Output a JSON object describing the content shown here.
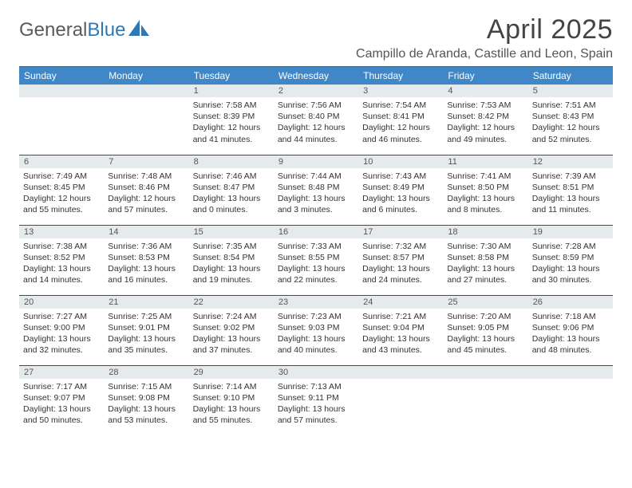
{
  "brand": {
    "name_part1": "General",
    "name_part2": "Blue"
  },
  "title": "April 2025",
  "location": "Campillo de Aranda, Castille and Leon, Spain",
  "colors": {
    "header_bg": "#3f87c6",
    "header_text": "#ffffff",
    "daybar_bg": "#e5eaed",
    "rule": "#555555",
    "brand_blue": "#2e79b5",
    "text": "#333333"
  },
  "weekdays": [
    "Sunday",
    "Monday",
    "Tuesday",
    "Wednesday",
    "Thursday",
    "Friday",
    "Saturday"
  ],
  "weeks": [
    [
      {
        "blank": true
      },
      {
        "blank": true
      },
      {
        "day": "1",
        "sunrise": "Sunrise: 7:58 AM",
        "sunset": "Sunset: 8:39 PM",
        "daylight1": "Daylight: 12 hours",
        "daylight2": "and 41 minutes."
      },
      {
        "day": "2",
        "sunrise": "Sunrise: 7:56 AM",
        "sunset": "Sunset: 8:40 PM",
        "daylight1": "Daylight: 12 hours",
        "daylight2": "and 44 minutes."
      },
      {
        "day": "3",
        "sunrise": "Sunrise: 7:54 AM",
        "sunset": "Sunset: 8:41 PM",
        "daylight1": "Daylight: 12 hours",
        "daylight2": "and 46 minutes."
      },
      {
        "day": "4",
        "sunrise": "Sunrise: 7:53 AM",
        "sunset": "Sunset: 8:42 PM",
        "daylight1": "Daylight: 12 hours",
        "daylight2": "and 49 minutes."
      },
      {
        "day": "5",
        "sunrise": "Sunrise: 7:51 AM",
        "sunset": "Sunset: 8:43 PM",
        "daylight1": "Daylight: 12 hours",
        "daylight2": "and 52 minutes."
      }
    ],
    [
      {
        "day": "6",
        "sunrise": "Sunrise: 7:49 AM",
        "sunset": "Sunset: 8:45 PM",
        "daylight1": "Daylight: 12 hours",
        "daylight2": "and 55 minutes."
      },
      {
        "day": "7",
        "sunrise": "Sunrise: 7:48 AM",
        "sunset": "Sunset: 8:46 PM",
        "daylight1": "Daylight: 12 hours",
        "daylight2": "and 57 minutes."
      },
      {
        "day": "8",
        "sunrise": "Sunrise: 7:46 AM",
        "sunset": "Sunset: 8:47 PM",
        "daylight1": "Daylight: 13 hours",
        "daylight2": "and 0 minutes."
      },
      {
        "day": "9",
        "sunrise": "Sunrise: 7:44 AM",
        "sunset": "Sunset: 8:48 PM",
        "daylight1": "Daylight: 13 hours",
        "daylight2": "and 3 minutes."
      },
      {
        "day": "10",
        "sunrise": "Sunrise: 7:43 AM",
        "sunset": "Sunset: 8:49 PM",
        "daylight1": "Daylight: 13 hours",
        "daylight2": "and 6 minutes."
      },
      {
        "day": "11",
        "sunrise": "Sunrise: 7:41 AM",
        "sunset": "Sunset: 8:50 PM",
        "daylight1": "Daylight: 13 hours",
        "daylight2": "and 8 minutes."
      },
      {
        "day": "12",
        "sunrise": "Sunrise: 7:39 AM",
        "sunset": "Sunset: 8:51 PM",
        "daylight1": "Daylight: 13 hours",
        "daylight2": "and 11 minutes."
      }
    ],
    [
      {
        "day": "13",
        "sunrise": "Sunrise: 7:38 AM",
        "sunset": "Sunset: 8:52 PM",
        "daylight1": "Daylight: 13 hours",
        "daylight2": "and 14 minutes."
      },
      {
        "day": "14",
        "sunrise": "Sunrise: 7:36 AM",
        "sunset": "Sunset: 8:53 PM",
        "daylight1": "Daylight: 13 hours",
        "daylight2": "and 16 minutes."
      },
      {
        "day": "15",
        "sunrise": "Sunrise: 7:35 AM",
        "sunset": "Sunset: 8:54 PM",
        "daylight1": "Daylight: 13 hours",
        "daylight2": "and 19 minutes."
      },
      {
        "day": "16",
        "sunrise": "Sunrise: 7:33 AM",
        "sunset": "Sunset: 8:55 PM",
        "daylight1": "Daylight: 13 hours",
        "daylight2": "and 22 minutes."
      },
      {
        "day": "17",
        "sunrise": "Sunrise: 7:32 AM",
        "sunset": "Sunset: 8:57 PM",
        "daylight1": "Daylight: 13 hours",
        "daylight2": "and 24 minutes."
      },
      {
        "day": "18",
        "sunrise": "Sunrise: 7:30 AM",
        "sunset": "Sunset: 8:58 PM",
        "daylight1": "Daylight: 13 hours",
        "daylight2": "and 27 minutes."
      },
      {
        "day": "19",
        "sunrise": "Sunrise: 7:28 AM",
        "sunset": "Sunset: 8:59 PM",
        "daylight1": "Daylight: 13 hours",
        "daylight2": "and 30 minutes."
      }
    ],
    [
      {
        "day": "20",
        "sunrise": "Sunrise: 7:27 AM",
        "sunset": "Sunset: 9:00 PM",
        "daylight1": "Daylight: 13 hours",
        "daylight2": "and 32 minutes."
      },
      {
        "day": "21",
        "sunrise": "Sunrise: 7:25 AM",
        "sunset": "Sunset: 9:01 PM",
        "daylight1": "Daylight: 13 hours",
        "daylight2": "and 35 minutes."
      },
      {
        "day": "22",
        "sunrise": "Sunrise: 7:24 AM",
        "sunset": "Sunset: 9:02 PM",
        "daylight1": "Daylight: 13 hours",
        "daylight2": "and 37 minutes."
      },
      {
        "day": "23",
        "sunrise": "Sunrise: 7:23 AM",
        "sunset": "Sunset: 9:03 PM",
        "daylight1": "Daylight: 13 hours",
        "daylight2": "and 40 minutes."
      },
      {
        "day": "24",
        "sunrise": "Sunrise: 7:21 AM",
        "sunset": "Sunset: 9:04 PM",
        "daylight1": "Daylight: 13 hours",
        "daylight2": "and 43 minutes."
      },
      {
        "day": "25",
        "sunrise": "Sunrise: 7:20 AM",
        "sunset": "Sunset: 9:05 PM",
        "daylight1": "Daylight: 13 hours",
        "daylight2": "and 45 minutes."
      },
      {
        "day": "26",
        "sunrise": "Sunrise: 7:18 AM",
        "sunset": "Sunset: 9:06 PM",
        "daylight1": "Daylight: 13 hours",
        "daylight2": "and 48 minutes."
      }
    ],
    [
      {
        "day": "27",
        "sunrise": "Sunrise: 7:17 AM",
        "sunset": "Sunset: 9:07 PM",
        "daylight1": "Daylight: 13 hours",
        "daylight2": "and 50 minutes."
      },
      {
        "day": "28",
        "sunrise": "Sunrise: 7:15 AM",
        "sunset": "Sunset: 9:08 PM",
        "daylight1": "Daylight: 13 hours",
        "daylight2": "and 53 minutes."
      },
      {
        "day": "29",
        "sunrise": "Sunrise: 7:14 AM",
        "sunset": "Sunset: 9:10 PM",
        "daylight1": "Daylight: 13 hours",
        "daylight2": "and 55 minutes."
      },
      {
        "day": "30",
        "sunrise": "Sunrise: 7:13 AM",
        "sunset": "Sunset: 9:11 PM",
        "daylight1": "Daylight: 13 hours",
        "daylight2": "and 57 minutes."
      },
      {
        "blank": true
      },
      {
        "blank": true
      },
      {
        "blank": true
      }
    ]
  ]
}
